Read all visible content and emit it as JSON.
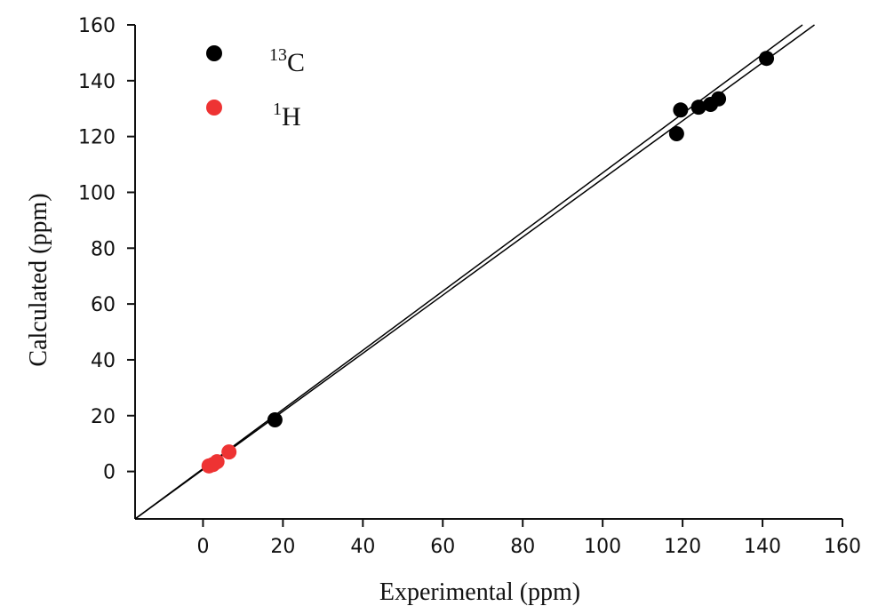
{
  "chart_data": {
    "type": "scatter",
    "title": "",
    "xlabel": "Experimental (ppm)",
    "ylabel": "Calculated (ppm)",
    "xlim": [
      -17,
      160
    ],
    "ylim": [
      -17,
      160
    ],
    "x_ticks": [
      0,
      20,
      40,
      60,
      80,
      100,
      120,
      140,
      160
    ],
    "y_ticks": [
      0,
      20,
      40,
      60,
      80,
      100,
      120,
      140,
      160
    ],
    "grid": false,
    "legend_position": "top-left",
    "series": [
      {
        "name": "13C",
        "name_sup": "13",
        "name_base": "C",
        "color": "#000000",
        "points": [
          {
            "x": 18,
            "y": 18.5
          },
          {
            "x": 118.5,
            "y": 121
          },
          {
            "x": 119.5,
            "y": 129.5
          },
          {
            "x": 124,
            "y": 130.5
          },
          {
            "x": 127,
            "y": 131.5
          },
          {
            "x": 129,
            "y": 133.5
          },
          {
            "x": 141,
            "y": 148
          }
        ]
      },
      {
        "name": "1H",
        "name_sup": "1",
        "name_base": "H",
        "color": "#ee3333",
        "points": [
          {
            "x": 1.5,
            "y": 2
          },
          {
            "x": 2.5,
            "y": 2.5
          },
          {
            "x": 3.5,
            "y": 3.5
          },
          {
            "x": 6.5,
            "y": 7
          }
        ]
      }
    ],
    "fit_lines": [
      {
        "from": [
          -17,
          -17
        ],
        "to": [
          150,
          160
        ],
        "color": "#000000"
      },
      {
        "from": [
          -17,
          -17
        ],
        "to": [
          153,
          160
        ],
        "color": "#000000"
      }
    ]
  }
}
